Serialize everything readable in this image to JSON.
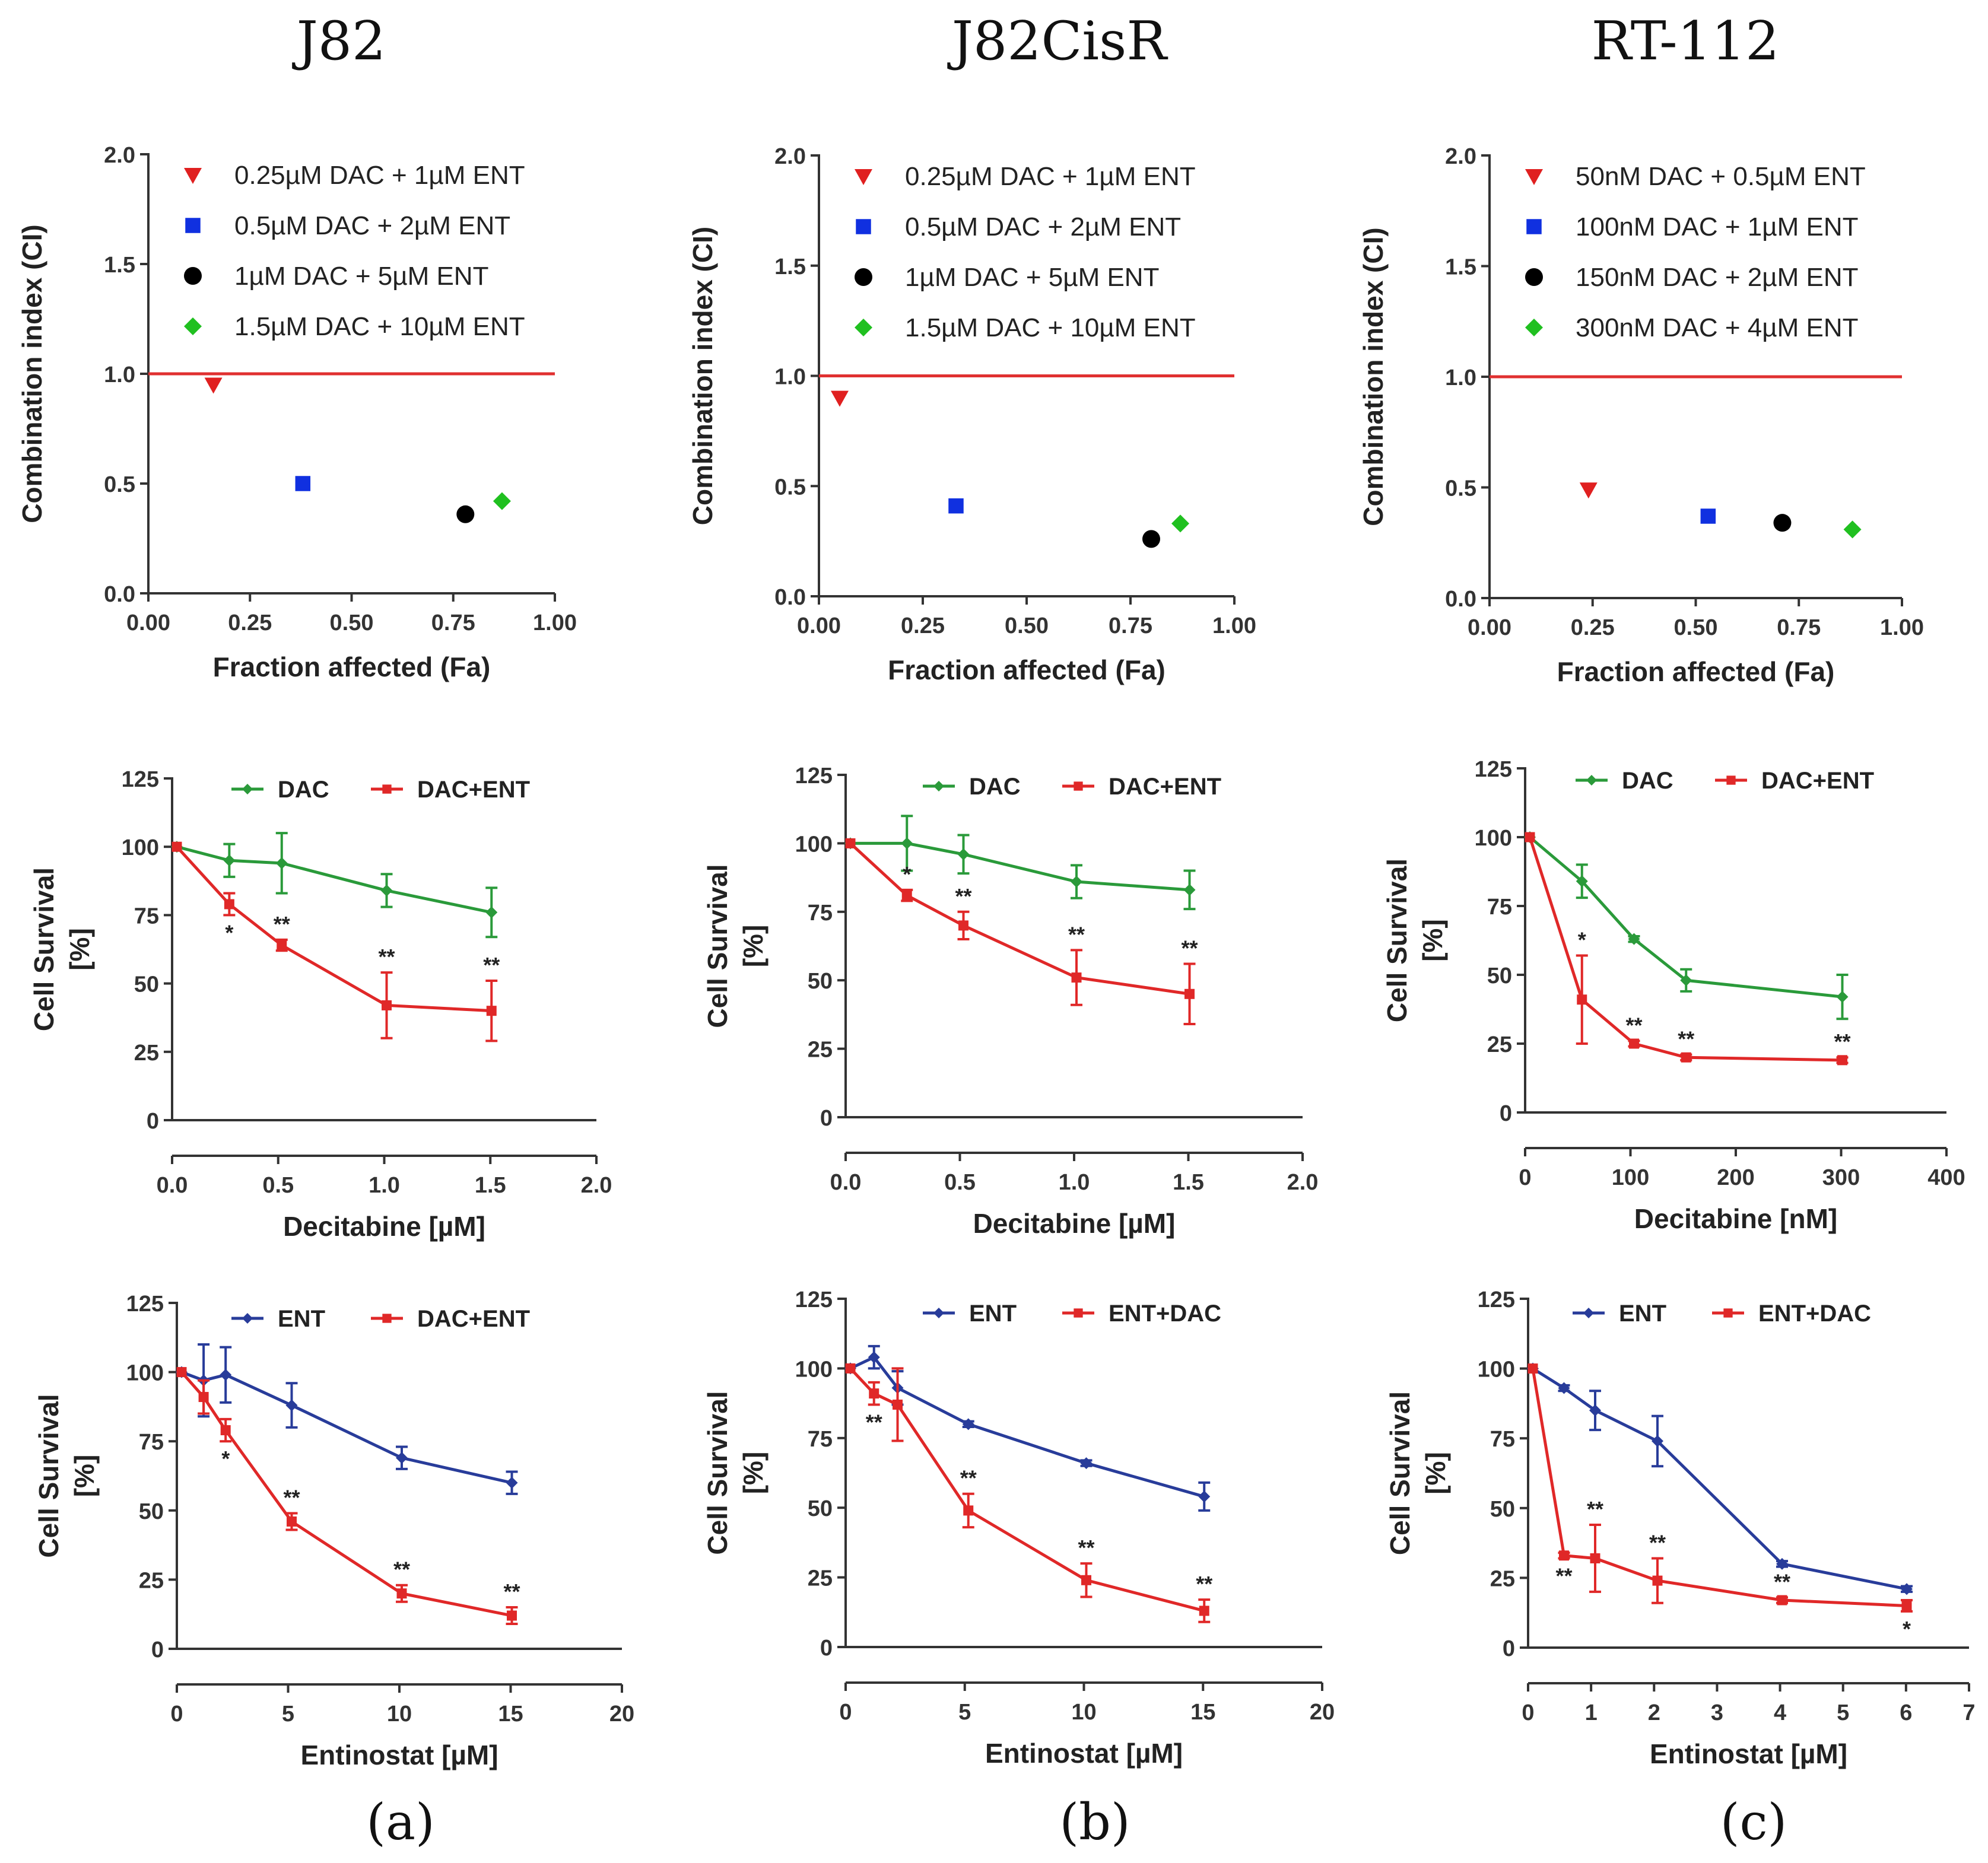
{
  "columns": [
    "J82",
    "J82CisR",
    "RT-112"
  ],
  "panels": [
    "(a)",
    "(b)",
    "(c)"
  ],
  "chart_data": [
    {
      "id": "ci-j82",
      "type": "scatter",
      "column": 0,
      "xlabel": "Fraction affected (Fa)",
      "ylabel": "Combination index (CI)",
      "xlim": [
        0,
        1
      ],
      "ylim": [
        0,
        2
      ],
      "xticks": [
        "0.00",
        "0.25",
        "0.50",
        "0.75",
        "1.00"
      ],
      "yticks": [
        "0.0",
        "0.5",
        "1.0",
        "1.5",
        "2.0"
      ],
      "refline": 1.0,
      "refcolor": "#e03030",
      "points": [
        {
          "x": 0.16,
          "y": 0.95,
          "shape": "triangle",
          "color": "#e02020",
          "label": "0.25µM DAC + 1µM ENT"
        },
        {
          "x": 0.38,
          "y": 0.5,
          "shape": "square",
          "color": "#1030e0",
          "label": "0.5µM DAC + 2µM ENT"
        },
        {
          "x": 0.78,
          "y": 0.36,
          "shape": "circle",
          "color": "#000000",
          "label": "1µM DAC + 5µM ENT"
        },
        {
          "x": 0.87,
          "y": 0.42,
          "shape": "diamond",
          "color": "#20c020",
          "label": "1.5µM DAC + 10µM ENT"
        }
      ]
    },
    {
      "id": "ci-j82cisr",
      "type": "scatter",
      "column": 1,
      "xlabel": "Fraction affected (Fa)",
      "ylabel": "Combination index (CI)",
      "xlim": [
        0,
        1
      ],
      "ylim": [
        0,
        2
      ],
      "xticks": [
        "0.00",
        "0.25",
        "0.50",
        "0.75",
        "1.00"
      ],
      "yticks": [
        "0.0",
        "0.5",
        "1.0",
        "1.5",
        "2.0"
      ],
      "refline": 1.0,
      "refcolor": "#e03030",
      "points": [
        {
          "x": 0.05,
          "y": 0.9,
          "shape": "triangle",
          "color": "#e02020",
          "label": "0.25µM DAC + 1µM ENT"
        },
        {
          "x": 0.33,
          "y": 0.41,
          "shape": "square",
          "color": "#1030e0",
          "label": "0.5µM DAC + 2µM ENT"
        },
        {
          "x": 0.8,
          "y": 0.26,
          "shape": "circle",
          "color": "#000000",
          "label": "1µM DAC + 5µM ENT"
        },
        {
          "x": 0.87,
          "y": 0.33,
          "shape": "diamond",
          "color": "#20c020",
          "label": "1.5µM DAC + 10µM ENT"
        }
      ]
    },
    {
      "id": "ci-rt112",
      "type": "scatter",
      "column": 2,
      "xlabel": "Fraction affected (Fa)",
      "ylabel": "Combination index (CI)",
      "xlim": [
        0,
        1
      ],
      "ylim": [
        0,
        2
      ],
      "xticks": [
        "0.00",
        "0.25",
        "0.50",
        "0.75",
        "1.00"
      ],
      "yticks": [
        "0.0",
        "0.5",
        "1.0",
        "1.5",
        "2.0"
      ],
      "refline": 1.0,
      "refcolor": "#e03030",
      "points": [
        {
          "x": 0.24,
          "y": 0.49,
          "shape": "triangle",
          "color": "#e02020",
          "label": "50nM DAC + 0.5µM ENT"
        },
        {
          "x": 0.53,
          "y": 0.37,
          "shape": "square",
          "color": "#1030e0",
          "label": "100nM DAC + 1µM ENT"
        },
        {
          "x": 0.71,
          "y": 0.34,
          "shape": "circle",
          "color": "#000000",
          "label": "150nM DAC + 2µM ENT"
        },
        {
          "x": 0.88,
          "y": 0.31,
          "shape": "diamond",
          "color": "#20c020",
          "label": "300nM DAC + 4µM ENT"
        }
      ]
    },
    {
      "id": "dac-j82",
      "type": "line",
      "column": 0,
      "xlabel": "Decitabine [µM]",
      "ylabel": [
        "Cell Survival",
        "[%]"
      ],
      "xlim": [
        0,
        2
      ],
      "ylim": [
        0,
        125
      ],
      "xticks": [
        "0.0",
        "0.5",
        "1.0",
        "1.5",
        "2.0"
      ],
      "yticks": [
        "0",
        "25",
        "50",
        "75",
        "100",
        "125"
      ],
      "series": [
        {
          "name": "DAC",
          "color": "#2a9a3a",
          "x": [
            0,
            0.25,
            0.5,
            1.0,
            1.5
          ],
          "y": [
            100,
            95,
            94,
            84,
            76
          ],
          "err": [
            0,
            6,
            11,
            6,
            9
          ],
          "sig": [
            "",
            "",
            "",
            "",
            ""
          ]
        },
        {
          "name": "DAC+ENT",
          "color": "#e02828",
          "x": [
            0,
            0.25,
            0.5,
            1.0,
            1.5
          ],
          "y": [
            100,
            79,
            64,
            42,
            40
          ],
          "err": [
            0,
            4,
            2,
            12,
            11
          ],
          "sig": [
            "",
            "*",
            "**",
            "**",
            "**"
          ]
        }
      ]
    },
    {
      "id": "dac-j82cisr",
      "type": "line",
      "column": 1,
      "xlabel": "Decitabine [µM]",
      "ylabel": [
        "Cell Survival",
        "[%]"
      ],
      "xlim": [
        0,
        2
      ],
      "ylim": [
        0,
        125
      ],
      "xticks": [
        "0.0",
        "0.5",
        "1.0",
        "1.5",
        "2.0"
      ],
      "yticks": [
        "0",
        "25",
        "50",
        "75",
        "100",
        "125"
      ],
      "series": [
        {
          "name": "DAC",
          "color": "#2a9a3a",
          "x": [
            0,
            0.25,
            0.5,
            1.0,
            1.5
          ],
          "y": [
            100,
            100,
            96,
            86,
            83
          ],
          "err": [
            0,
            10,
            7,
            6,
            7
          ],
          "sig": [
            "",
            "",
            "",
            "",
            ""
          ]
        },
        {
          "name": "DAC+ENT",
          "color": "#e02828",
          "x": [
            0,
            0.25,
            0.5,
            1.0,
            1.5
          ],
          "y": [
            100,
            81,
            70,
            51,
            45
          ],
          "err": [
            0,
            2,
            5,
            10,
            11
          ],
          "sig": [
            "",
            "*",
            "**",
            "**",
            "**"
          ]
        }
      ]
    },
    {
      "id": "dac-rt112",
      "type": "line",
      "column": 2,
      "xlabel": "Decitabine [nM]",
      "ylabel": [
        "Cell Survival",
        "[%]"
      ],
      "xlim": [
        0,
        400
      ],
      "ylim": [
        0,
        125
      ],
      "xticks": [
        "0",
        "100",
        "200",
        "300",
        "400"
      ],
      "yticks": [
        "0",
        "25",
        "50",
        "75",
        "100",
        "125"
      ],
      "series": [
        {
          "name": "DAC",
          "color": "#2a9a3a",
          "x": [
            0,
            50,
            100,
            150,
            300
          ],
          "y": [
            100,
            84,
            63,
            48,
            42
          ],
          "err": [
            0,
            6,
            1,
            4,
            8
          ],
          "sig": [
            "",
            "",
            "",
            "",
            ""
          ]
        },
        {
          "name": "DAC+ENT",
          "color": "#e02828",
          "x": [
            0,
            50,
            100,
            150,
            300
          ],
          "y": [
            100,
            41,
            25,
            20,
            19
          ],
          "err": [
            0,
            16,
            1,
            1,
            1
          ],
          "sig": [
            "",
            "*",
            "**",
            "**",
            "**"
          ]
        }
      ]
    },
    {
      "id": "ent-j82",
      "type": "line",
      "column": 0,
      "xlabel": "Entinostat [µM]",
      "ylabel": [
        "Cell Survival",
        "[%]"
      ],
      "xlim": [
        0,
        20
      ],
      "ylim": [
        0,
        125
      ],
      "xticks": [
        "0",
        "5",
        "10",
        "15",
        "20"
      ],
      "yticks": [
        "0",
        "25",
        "50",
        "75",
        "100",
        "125"
      ],
      "series": [
        {
          "name": "ENT",
          "color": "#283c9a",
          "x": [
            0,
            1,
            2,
            5,
            10,
            15
          ],
          "y": [
            100,
            97,
            99,
            88,
            69,
            60
          ],
          "err": [
            0,
            13,
            10,
            8,
            4,
            4
          ],
          "sig": [
            "",
            "",
            "",
            "",
            "",
            ""
          ]
        },
        {
          "name": "DAC+ENT",
          "color": "#e02828",
          "x": [
            0,
            1,
            2,
            5,
            10,
            15
          ],
          "y": [
            100,
            91,
            79,
            46,
            20,
            12
          ],
          "err": [
            0,
            6,
            4,
            3,
            3,
            3
          ],
          "sig": [
            "",
            "",
            "*",
            "**",
            "**",
            "**"
          ]
        }
      ]
    },
    {
      "id": "ent-j82cisr",
      "type": "line",
      "column": 1,
      "xlabel": "Entinostat [µM]",
      "ylabel": [
        "Cell Survival",
        "[%]"
      ],
      "xlim": [
        0,
        20
      ],
      "ylim": [
        0,
        125
      ],
      "xticks": [
        "0",
        "5",
        "10",
        "15",
        "20"
      ],
      "yticks": [
        "0",
        "25",
        "50",
        "75",
        "100",
        "125"
      ],
      "series": [
        {
          "name": "ENT",
          "color": "#283c9a",
          "x": [
            0,
            1,
            2,
            5,
            10,
            15
          ],
          "y": [
            100,
            104,
            93,
            80,
            66,
            54
          ],
          "err": [
            0,
            4,
            6,
            1,
            1,
            5
          ],
          "sig": [
            "",
            "",
            "",
            "",
            "",
            ""
          ]
        },
        {
          "name": "ENT+DAC",
          "color": "#e02828",
          "x": [
            0,
            1,
            2,
            5,
            10,
            15
          ],
          "y": [
            100,
            91,
            87,
            49,
            24,
            13
          ],
          "err": [
            0,
            4,
            13,
            6,
            6,
            4
          ],
          "sig": [
            "",
            "**",
            "",
            "**",
            "**",
            "**"
          ]
        }
      ]
    },
    {
      "id": "ent-rt112",
      "type": "line",
      "column": 2,
      "xlabel": "Entinostat [µM]",
      "ylabel": [
        "Cell Survival",
        "[%]"
      ],
      "xlim": [
        0,
        7
      ],
      "ylim": [
        0,
        125
      ],
      "xticks": [
        "0",
        "1",
        "2",
        "3",
        "4",
        "5",
        "6",
        "7"
      ],
      "yticks": [
        "0",
        "25",
        "50",
        "75",
        "100",
        "125"
      ],
      "series": [
        {
          "name": "ENT",
          "color": "#283c9a",
          "x": [
            0,
            0.5,
            1,
            2,
            4,
            6
          ],
          "y": [
            100,
            93,
            85,
            74,
            30,
            21
          ],
          "err": [
            0,
            1,
            7,
            9,
            1,
            1
          ],
          "sig": [
            "",
            "",
            "",
            "",
            "",
            ""
          ]
        },
        {
          "name": "ENT+DAC",
          "color": "#e02828",
          "x": [
            0,
            0.5,
            1,
            2,
            4,
            6
          ],
          "y": [
            100,
            33,
            32,
            24,
            17,
            15
          ],
          "err": [
            0,
            1,
            12,
            8,
            1,
            2
          ],
          "sig": [
            "",
            "**",
            "**",
            "**",
            "**",
            "*"
          ]
        }
      ]
    }
  ]
}
